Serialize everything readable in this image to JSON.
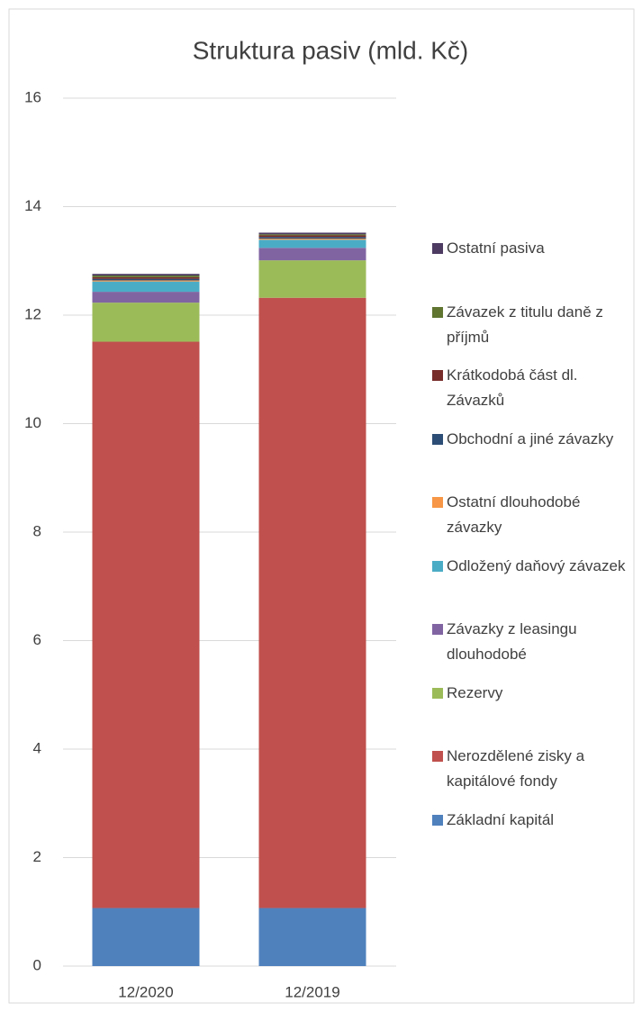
{
  "chart_data": {
    "type": "stacked-bar",
    "title": "Struktura pasiv (mld. Kč)",
    "categories": [
      "12/2020",
      "12/2019"
    ],
    "series": [
      {
        "name": "Základní kapitál",
        "color": "#4f81bd",
        "values": [
          1.07,
          1.07
        ]
      },
      {
        "name": "Nerozdělené zisky a kapitálové fondy",
        "color": "#c0504d",
        "values": [
          10.44,
          11.25
        ]
      },
      {
        "name": "Rezervy",
        "color": "#9bbb59",
        "values": [
          0.72,
          0.69
        ]
      },
      {
        "name": "Závazky z leasingu dlouhodobé",
        "color": "#8064a2",
        "values": [
          0.2,
          0.23
        ]
      },
      {
        "name": "Odložený daňový závazek",
        "color": "#4bacc6",
        "values": [
          0.19,
          0.15
        ]
      },
      {
        "name": "Ostatní dlouhodobé závazky",
        "color": "#f79646",
        "values": [
          0.02,
          0.02
        ]
      },
      {
        "name": "Obchodní a jiné závazky",
        "color": "#2c4d75",
        "values": [
          0.03,
          0.03
        ]
      },
      {
        "name": "Krátkodobá část dl. Závazků",
        "color": "#772c2a",
        "values": [
          0.03,
          0.03
        ]
      },
      {
        "name": "Závazek z titulu daně z příjmů",
        "color": "#5f7530",
        "values": [
          0.03,
          0.02
        ]
      },
      {
        "name": "Ostatní pasiva",
        "color": "#4d3b62",
        "values": [
          0.03,
          0.03
        ]
      }
    ],
    "ylim": [
      0,
      16
    ],
    "yticks": [
      0,
      2,
      4,
      6,
      8,
      10,
      12,
      14,
      16
    ],
    "grid": true
  }
}
